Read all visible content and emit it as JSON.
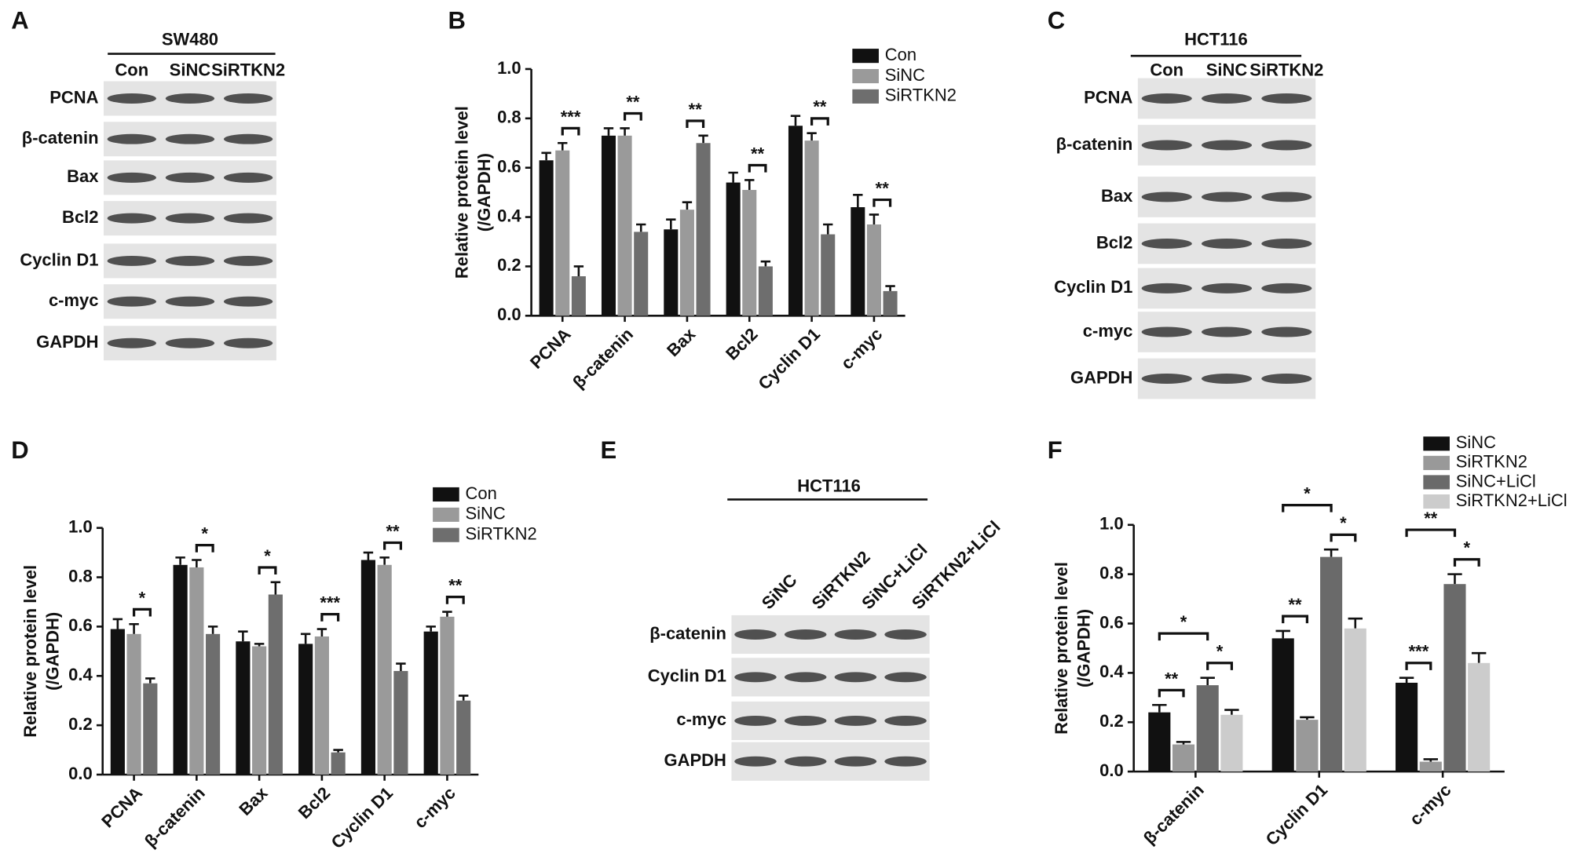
{
  "chart_data": [
    {
      "type": "blot",
      "panel": "A",
      "title": "SW480",
      "lanes": [
        "Con",
        "SiNC",
        "SiRTKN2"
      ],
      "rows": [
        "PCNA",
        "β-catenin",
        "Bax",
        "Bcl2",
        "Cyclin D1",
        "c-myc",
        "GAPDH"
      ]
    },
    {
      "type": "bar",
      "panel": "B",
      "ylabel": [
        "Relative protein level",
        "(/GAPDH)"
      ],
      "categories": [
        "PCNA",
        "β-catenin",
        "Bax",
        "Bcl2",
        "Cyclin D1",
        "c-myc"
      ],
      "series": [
        {
          "name": "Con",
          "color": "#111111",
          "values": [
            0.63,
            0.73,
            0.35,
            0.54,
            0.77,
            0.44
          ],
          "errors": [
            0.03,
            0.03,
            0.04,
            0.04,
            0.04,
            0.05
          ]
        },
        {
          "name": "SiNC",
          "color": "#9a9a9a",
          "values": [
            0.67,
            0.73,
            0.43,
            0.51,
            0.71,
            0.37
          ],
          "errors": [
            0.03,
            0.03,
            0.03,
            0.04,
            0.03,
            0.04
          ]
        },
        {
          "name": "SiRTKN2",
          "color": "#6e6e6e",
          "values": [
            0.16,
            0.34,
            0.7,
            0.2,
            0.33,
            0.1
          ],
          "errors": [
            0.04,
            0.03,
            0.03,
            0.02,
            0.04,
            0.02
          ]
        }
      ],
      "ylim": [
        0,
        1
      ],
      "yticks": [
        {
          "value": 0,
          "label": "0.0"
        },
        {
          "value": 0.2,
          "label": "0.2"
        },
        {
          "value": 0.4,
          "label": "0.4"
        },
        {
          "value": 0.6,
          "label": "0.6"
        },
        {
          "value": 0.8,
          "label": "0.8"
        },
        {
          "value": 1,
          "label": "1.0"
        }
      ],
      "annotations": [
        {
          "text": "***",
          "category": 0,
          "pair": [
            1,
            2
          ]
        },
        {
          "text": "**",
          "category": 1,
          "pair": [
            1,
            2
          ]
        },
        {
          "text": "**",
          "category": 2,
          "pair": [
            1,
            2
          ]
        },
        {
          "text": "**",
          "category": 3,
          "pair": [
            1,
            2
          ]
        },
        {
          "text": "**",
          "category": 4,
          "pair": [
            1,
            2
          ]
        },
        {
          "text": "**",
          "category": 5,
          "pair": [
            1,
            2
          ]
        }
      ]
    },
    {
      "type": "blot",
      "panel": "C",
      "title": "HCT116",
      "lanes": [
        "Con",
        "SiNC",
        "SiRTKN2"
      ],
      "rows": [
        "PCNA",
        "β-catenin",
        "Bax",
        "Bcl2",
        "Cyclin D1",
        "c-myc",
        "GAPDH"
      ]
    },
    {
      "type": "bar",
      "panel": "D",
      "ylabel": [
        "Relative protein level",
        "(/GAPDH)"
      ],
      "categories": [
        "PCNA",
        "β-catenin",
        "Bax",
        "Bcl2",
        "Cyclin D1",
        "c-myc"
      ],
      "series": [
        {
          "name": "Con",
          "color": "#111111",
          "values": [
            0.59,
            0.85,
            0.54,
            0.53,
            0.87,
            0.58
          ],
          "errors": [
            0.04,
            0.03,
            0.04,
            0.04,
            0.03,
            0.02
          ]
        },
        {
          "name": "SiNC",
          "color": "#9a9a9a",
          "values": [
            0.57,
            0.84,
            0.52,
            0.56,
            0.85,
            0.64
          ],
          "errors": [
            0.04,
            0.03,
            0.01,
            0.03,
            0.03,
            0.02
          ]
        },
        {
          "name": "SiRTKN2",
          "color": "#6e6e6e",
          "values": [
            0.37,
            0.57,
            0.73,
            0.09,
            0.42,
            0.3
          ],
          "errors": [
            0.02,
            0.03,
            0.05,
            0.01,
            0.03,
            0.02
          ]
        }
      ],
      "ylim": [
        0,
        1
      ],
      "yticks": [
        {
          "value": 0,
          "label": "0.0"
        },
        {
          "value": 0.2,
          "label": "0.2"
        },
        {
          "value": 0.4,
          "label": "0.4"
        },
        {
          "value": 0.6,
          "label": "0.6"
        },
        {
          "value": 0.8,
          "label": "0.8"
        },
        {
          "value": 1,
          "label": "1.0"
        }
      ],
      "annotations": [
        {
          "text": "*",
          "category": 0,
          "pair": [
            1,
            2
          ]
        },
        {
          "text": "*",
          "category": 1,
          "pair": [
            1,
            2
          ]
        },
        {
          "text": "*",
          "category": 2,
          "pair": [
            1,
            2
          ]
        },
        {
          "text": "***",
          "category": 3,
          "pair": [
            1,
            2
          ]
        },
        {
          "text": "**",
          "category": 4,
          "pair": [
            1,
            2
          ]
        },
        {
          "text": "**",
          "category": 5,
          "pair": [
            1,
            2
          ]
        }
      ]
    },
    {
      "type": "blot",
      "panel": "E",
      "title": "HCT116",
      "lanes": [
        "SiNC",
        "SiRTKN2",
        "SiNC+LiCl",
        "SiRTKN2+LiCl"
      ],
      "rows": [
        "β-catenin",
        "Cyclin D1",
        "c-myc",
        "GAPDH"
      ]
    },
    {
      "type": "bar",
      "panel": "F",
      "ylabel": [
        "Relative protein level",
        "(/GAPDH)"
      ],
      "categories": [
        "β-catenin",
        "Cyclin D1",
        "c-myc"
      ],
      "series": [
        {
          "name": "SiNC",
          "color": "#111111",
          "values": [
            0.24,
            0.54,
            0.36
          ],
          "errors": [
            0.03,
            0.03,
            0.02
          ]
        },
        {
          "name": "SiRTKN2",
          "color": "#999999",
          "values": [
            0.11,
            0.21,
            0.04
          ],
          "errors": [
            0.01,
            0.01,
            0.01
          ]
        },
        {
          "name": "SiNC+LiCl",
          "color": "#6a6a6a",
          "values": [
            0.35,
            0.87,
            0.76
          ],
          "errors": [
            0.03,
            0.03,
            0.04
          ]
        },
        {
          "name": "SiRTKN2+LiCl",
          "color": "#cccccc",
          "values": [
            0.23,
            0.58,
            0.44
          ],
          "errors": [
            0.02,
            0.04,
            0.04
          ]
        }
      ],
      "ylim": [
        0,
        1
      ],
      "yticks": [
        {
          "value": 0,
          "label": "0.0"
        },
        {
          "value": 0.2,
          "label": "0.2"
        },
        {
          "value": 0.4,
          "label": "0.4"
        },
        {
          "value": 0.6,
          "label": "0.6"
        },
        {
          "value": 0.8,
          "label": "0.8"
        },
        {
          "value": 1,
          "label": "1.0"
        }
      ],
      "annotations": [
        {
          "text": "*",
          "category": 0,
          "pair": [
            0,
            2
          ]
        },
        {
          "text": "**",
          "category": 0,
          "pair": [
            0,
            1
          ]
        },
        {
          "text": "*",
          "category": 0,
          "pair": [
            2,
            3
          ]
        },
        {
          "text": "*",
          "category": 1,
          "pair": [
            0,
            2
          ]
        },
        {
          "text": "**",
          "category": 1,
          "pair": [
            0,
            1
          ]
        },
        {
          "text": "*",
          "category": 1,
          "pair": [
            2,
            3
          ]
        },
        {
          "text": "**",
          "category": 2,
          "pair": [
            0,
            2
          ]
        },
        {
          "text": "***",
          "category": 2,
          "pair": [
            0,
            1
          ]
        },
        {
          "text": "*",
          "category": 2,
          "pair": [
            2,
            3
          ]
        }
      ]
    }
  ]
}
